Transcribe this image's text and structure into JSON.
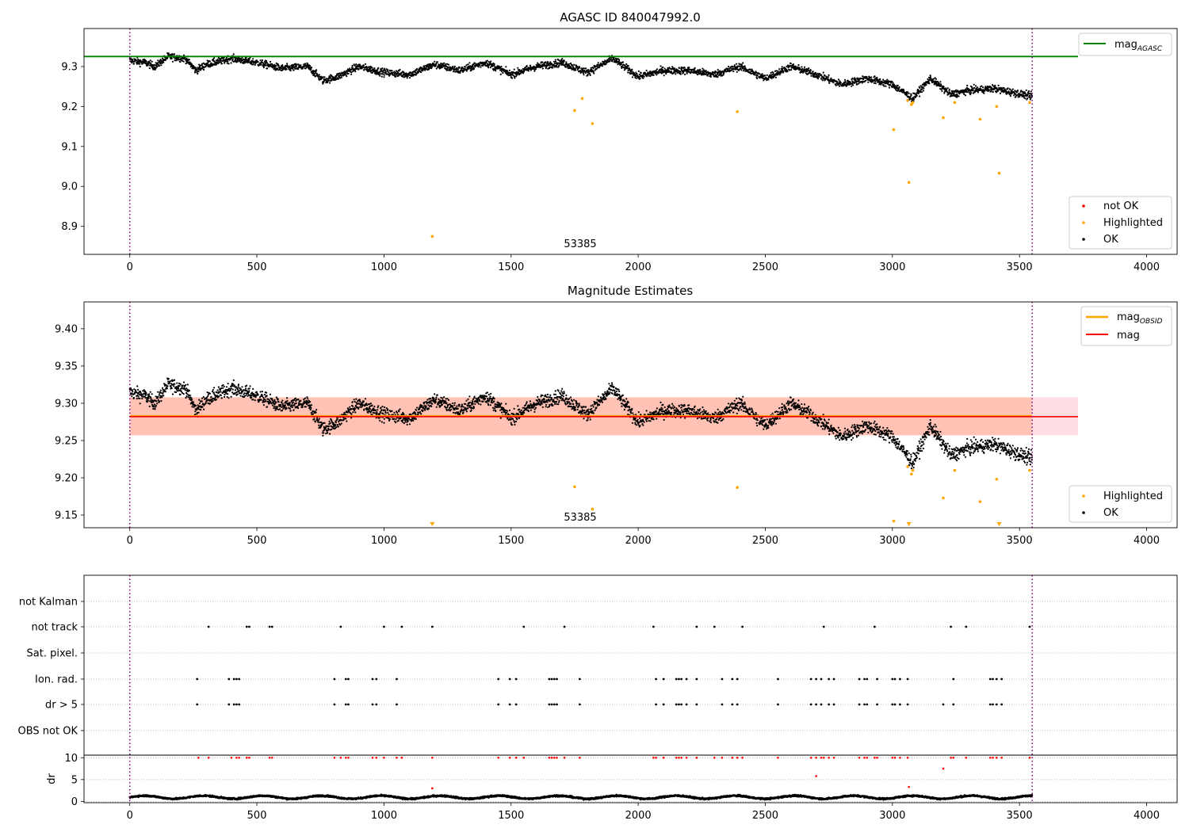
{
  "chart_data": [
    {
      "type": "scatter",
      "title": "AGASC ID 840047992.0",
      "xlabel": "",
      "ylabel": "",
      "xlim": [
        -180,
        4120
      ],
      "ylim": [
        8.83,
        9.395
      ],
      "xticks": [
        0,
        500,
        1000,
        1500,
        2000,
        2500,
        3000,
        3500,
        4000
      ],
      "yticks": [
        8.9,
        9.0,
        9.1,
        9.2,
        9.3
      ],
      "ytick_labels": [
        "8.9",
        "9.0",
        "9.1",
        "9.2",
        "9.3"
      ],
      "xtick_labels": [
        "0",
        "500",
        "1000",
        "1500",
        "2000",
        "2500",
        "3000",
        "3500",
        "4000"
      ],
      "vlines": [
        0,
        3550
      ],
      "mag_agasc": 9.325,
      "annotation": {
        "text": "53385",
        "x": 1775,
        "y": 8.85
      },
      "legend_top": {
        "position": "upper right",
        "entries": [
          {
            "label": "mag",
            "sub": "AGASC",
            "color": "#008000"
          }
        ]
      },
      "legend_bottom": {
        "position": "lower right",
        "entries": [
          {
            "label": "not OK",
            "color": "#ff0000"
          },
          {
            "label": "Highlighted",
            "color": "#ffa500"
          },
          {
            "label": "OK",
            "color": "#000000"
          }
        ]
      },
      "highlighted_points": [
        [
          1190,
          8.875
        ],
        [
          1750,
          9.19
        ],
        [
          1780,
          9.22
        ],
        [
          1820,
          9.157
        ],
        [
          2390,
          9.187
        ],
        [
          3005,
          9.142
        ],
        [
          3060,
          9.215
        ],
        [
          3065,
          9.01
        ],
        [
          3075,
          9.205
        ],
        [
          3080,
          9.21
        ],
        [
          3200,
          9.172
        ],
        [
          3245,
          9.21
        ],
        [
          3345,
          9.168
        ],
        [
          3410,
          9.2
        ],
        [
          3420,
          9.033
        ],
        [
          3540,
          9.21
        ]
      ],
      "ok_trend": [
        [
          0,
          9.315
        ],
        [
          60,
          9.31
        ],
        [
          100,
          9.3
        ],
        [
          150,
          9.325
        ],
        [
          220,
          9.32
        ],
        [
          260,
          9.29
        ],
        [
          300,
          9.305
        ],
        [
          400,
          9.32
        ],
        [
          500,
          9.31
        ],
        [
          600,
          9.295
        ],
        [
          700,
          9.3
        ],
        [
          760,
          9.265
        ],
        [
          820,
          9.275
        ],
        [
          900,
          9.3
        ],
        [
          1000,
          9.285
        ],
        [
          1100,
          9.28
        ],
        [
          1200,
          9.305
        ],
        [
          1300,
          9.29
        ],
        [
          1400,
          9.31
        ],
        [
          1500,
          9.28
        ],
        [
          1600,
          9.3
        ],
        [
          1700,
          9.31
        ],
        [
          1800,
          9.285
        ],
        [
          1900,
          9.32
        ],
        [
          2000,
          9.275
        ],
        [
          2100,
          9.29
        ],
        [
          2200,
          9.29
        ],
        [
          2300,
          9.28
        ],
        [
          2400,
          9.3
        ],
        [
          2500,
          9.27
        ],
        [
          2600,
          9.3
        ],
        [
          2700,
          9.28
        ],
        [
          2800,
          9.255
        ],
        [
          2900,
          9.27
        ],
        [
          3000,
          9.255
        ],
        [
          3080,
          9.22
        ],
        [
          3150,
          9.27
        ],
        [
          3230,
          9.23
        ],
        [
          3300,
          9.24
        ],
        [
          3400,
          9.245
        ],
        [
          3550,
          9.225
        ]
      ],
      "ok_scatter_sd": 0.009
    },
    {
      "type": "scatter",
      "title": "Magnitude Estimates",
      "xlabel": "",
      "ylabel": "",
      "xlim": [
        -180,
        4120
      ],
      "ylim": [
        9.133,
        9.436
      ],
      "xticks": [
        0,
        500,
        1000,
        1500,
        2000,
        2500,
        3000,
        3500,
        4000
      ],
      "yticks": [
        9.15,
        9.2,
        9.25,
        9.3,
        9.35,
        9.4
      ],
      "ytick_labels": [
        "9.15",
        "9.20",
        "9.25",
        "9.30",
        "9.35",
        "9.40"
      ],
      "xtick_labels": [
        "0",
        "500",
        "1000",
        "1500",
        "2000",
        "2500",
        "3000",
        "3500",
        "4000"
      ],
      "vlines": [
        0,
        3550
      ],
      "mag": 9.282,
      "mag_band": [
        9.257,
        9.308
      ],
      "mag_obsid_band": [
        9.257,
        9.308
      ],
      "annotation": {
        "text": "53385",
        "x": 1775,
        "y": 9.14
      },
      "legend_top": {
        "position": "upper right",
        "entries": [
          {
            "label": "mag",
            "sub": "OBSID",
            "color": "#ffa500"
          },
          {
            "label": "mag",
            "color": "#ff0000"
          }
        ]
      },
      "legend_bottom": {
        "position": "lower right",
        "entries": [
          {
            "label": "Highlighted",
            "color": "#ffa500"
          },
          {
            "label": "OK",
            "color": "#000000"
          }
        ]
      },
      "highlighted_points": [
        [
          1750,
          9.188
        ],
        [
          1820,
          9.158
        ],
        [
          2390,
          9.187
        ],
        [
          3005,
          9.142
        ],
        [
          3060,
          9.215
        ],
        [
          3075,
          9.205
        ],
        [
          3080,
          9.21
        ],
        [
          3200,
          9.173
        ],
        [
          3245,
          9.21
        ],
        [
          3345,
          9.168
        ],
        [
          3410,
          9.198
        ],
        [
          3540,
          9.21
        ]
      ],
      "offscale_points": [
        1190,
        3065,
        3420
      ]
    },
    {
      "type": "scatter",
      "title": "",
      "xlabel": "",
      "ylabel": "",
      "xlim": [
        -180,
        4120
      ],
      "xticks": [
        0,
        500,
        1000,
        1500,
        2000,
        2500,
        3000,
        3500,
        4000
      ],
      "xtick_labels": [
        "0",
        "500",
        "1000",
        "1500",
        "2000",
        "2500",
        "3000",
        "3500",
        "4000"
      ],
      "vlines": [
        0,
        3550
      ],
      "flag_rows": [
        "not Kalman",
        "not track",
        "Sat. pixel.",
        "Ion. rad.",
        "dr > 5",
        "OBS not OK"
      ],
      "flags": {
        "not track": [
          310,
          460,
          470,
          550,
          560,
          830,
          1000,
          1070,
          1190,
          1550,
          1710,
          2060,
          2230,
          2300,
          2410,
          2730,
          2930,
          3230,
          3290,
          3540
        ],
        "Ion. rad.": [
          265,
          390,
          410,
          420,
          430,
          805,
          850,
          860,
          955,
          970,
          1050,
          1450,
          1495,
          1520,
          1650,
          1660,
          1670,
          1680,
          1770,
          2070,
          2100,
          2150,
          2160,
          2170,
          2190,
          2230,
          2330,
          2370,
          2390,
          2550,
          2680,
          2700,
          2720,
          2750,
          2770,
          2870,
          2890,
          2900,
          2940,
          3000,
          3010,
          3030,
          3060,
          3240,
          3385,
          3395,
          3410,
          3430
        ],
        "dr > 5": [
          265,
          390,
          410,
          420,
          430,
          805,
          850,
          860,
          955,
          970,
          1050,
          1450,
          1495,
          1520,
          1650,
          1660,
          1670,
          1680,
          1770,
          2070,
          2100,
          2150,
          2160,
          2170,
          2190,
          2230,
          2330,
          2370,
          2390,
          2550,
          2680,
          2700,
          2720,
          2750,
          2770,
          2870,
          2890,
          2900,
          2940,
          3000,
          3010,
          3030,
          3060,
          3200,
          3240,
          3385,
          3395,
          3410,
          3430
        ]
      },
      "dr": {
        "ylim": [
          -0.3,
          10.6
        ],
        "yticks": [
          0,
          5,
          10
        ],
        "ytick_labels": [
          "0",
          "5",
          "10"
        ],
        "ylabel": "dr",
        "baseline_mean": 0.95,
        "red_values": [
          [
            270,
            10
          ],
          [
            310,
            10
          ],
          [
            400,
            10
          ],
          [
            420,
            10
          ],
          [
            430,
            10
          ],
          [
            460,
            10
          ],
          [
            470,
            10
          ],
          [
            550,
            10
          ],
          [
            560,
            10
          ],
          [
            805,
            10
          ],
          [
            830,
            10
          ],
          [
            850,
            10
          ],
          [
            860,
            10
          ],
          [
            955,
            10
          ],
          [
            970,
            10
          ],
          [
            1000,
            10
          ],
          [
            1050,
            10
          ],
          [
            1070,
            10
          ],
          [
            1190,
            10
          ],
          [
            1190,
            3.0
          ],
          [
            1450,
            10
          ],
          [
            1495,
            10
          ],
          [
            1520,
            10
          ],
          [
            1550,
            10
          ],
          [
            1650,
            10
          ],
          [
            1660,
            10
          ],
          [
            1670,
            10
          ],
          [
            1680,
            10
          ],
          [
            1710,
            10
          ],
          [
            1770,
            10
          ],
          [
            2060,
            10
          ],
          [
            2070,
            10
          ],
          [
            2100,
            10
          ],
          [
            2150,
            10
          ],
          [
            2160,
            10
          ],
          [
            2170,
            10
          ],
          [
            2190,
            10
          ],
          [
            2230,
            10
          ],
          [
            2300,
            10
          ],
          [
            2330,
            10
          ],
          [
            2370,
            10
          ],
          [
            2390,
            10
          ],
          [
            2410,
            10
          ],
          [
            2550,
            10
          ],
          [
            2680,
            10
          ],
          [
            2700,
            10
          ],
          [
            2700,
            5.8
          ],
          [
            2720,
            10
          ],
          [
            2730,
            10
          ],
          [
            2750,
            10
          ],
          [
            2770,
            10
          ],
          [
            2870,
            10
          ],
          [
            2890,
            10
          ],
          [
            2900,
            10
          ],
          [
            2930,
            10
          ],
          [
            2940,
            10
          ],
          [
            3000,
            10
          ],
          [
            3010,
            10
          ],
          [
            3030,
            10
          ],
          [
            3060,
            10
          ],
          [
            3065,
            3.3
          ],
          [
            3200,
            7.5
          ],
          [
            3230,
            10
          ],
          [
            3240,
            10
          ],
          [
            3290,
            10
          ],
          [
            3385,
            10
          ],
          [
            3395,
            10
          ],
          [
            3410,
            10
          ],
          [
            3430,
            10
          ],
          [
            3540,
            10
          ]
        ]
      }
    }
  ]
}
